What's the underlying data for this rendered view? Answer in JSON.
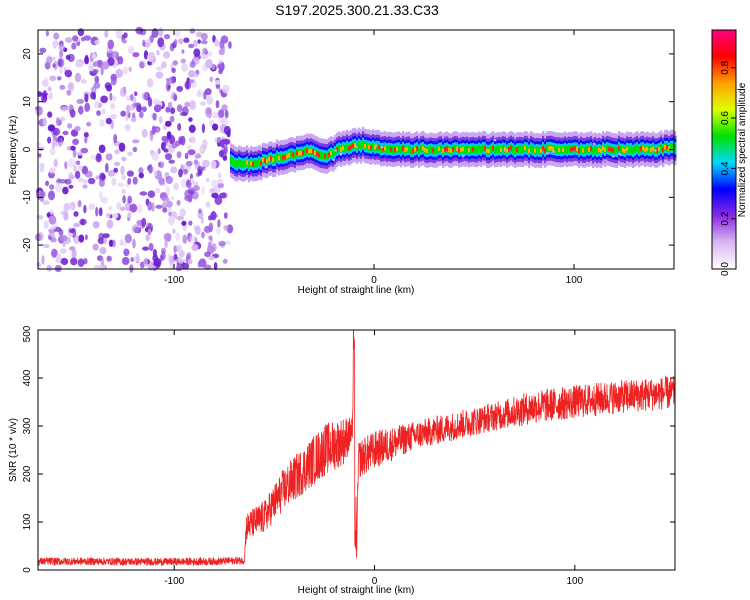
{
  "figure": {
    "title": "S197.2025.300.21.33.C33"
  },
  "chart_data": [
    {
      "type": "heatmap",
      "name": "spectrogram",
      "xlabel": "Height of straight line (km)",
      "ylabel": "Frequency (Hz)",
      "xlim": [
        -168,
        150
      ],
      "ylim": [
        -25,
        25
      ],
      "xticks": [
        -100,
        0,
        100
      ],
      "yticks": [
        -20,
        -10,
        0,
        10,
        20
      ],
      "noise_region_x": [
        -168,
        -72
      ],
      "ridge": {
        "x": [
          -72,
          -68,
          -60,
          -52,
          -45,
          -40,
          -35,
          -30,
          -26,
          -22,
          -18,
          -12,
          -6,
          0,
          10,
          20,
          40,
          60,
          80,
          100,
          120,
          140,
          150
        ],
        "freq": [
          -2.5,
          -3,
          -3,
          -2,
          -1.5,
          -1,
          -0.5,
          -0.5,
          -1.5,
          -1,
          0,
          0.5,
          1,
          0.5,
          0,
          0,
          0,
          0,
          0,
          0,
          0,
          0,
          0.5
        ]
      },
      "colorbar": {
        "label": "Normalized spectral amplitude",
        "range": [
          0,
          0.95
        ],
        "ticks": [
          "0.0",
          "0.2",
          "0.4",
          "0.6",
          "0.8"
        ],
        "tick_values": [
          0,
          0.2,
          0.4,
          0.6,
          0.8
        ],
        "colors": [
          "#ffffff",
          "#d9b8f2",
          "#8a2be2",
          "#0000ff",
          "#00d8ff",
          "#00e000",
          "#e0ff00",
          "#ffa000",
          "#ff0000",
          "#ff0080"
        ]
      }
    },
    {
      "type": "line",
      "name": "snr",
      "xlabel": "Height of straight line (km)",
      "ylabel": "SNR (10 * v/v)",
      "xlim": [
        -168,
        150
      ],
      "ylim": [
        0,
        500
      ],
      "xticks": [
        -100,
        0,
        100
      ],
      "yticks": [
        0,
        100,
        200,
        300,
        400,
        500
      ],
      "color": "#ee2222",
      "series": [
        {
          "name": "SNR",
          "x": [
            -168,
            -140,
            -110,
            -80,
            -65,
            -64,
            -55,
            -45,
            -35,
            -25,
            -15,
            -11,
            -10,
            -9,
            -8,
            0,
            20,
            40,
            60,
            80,
            100,
            120,
            150
          ],
          "mean": [
            18,
            18,
            17,
            18,
            20,
            90,
            110,
            170,
            210,
            250,
            270,
            290,
            480,
            30,
            230,
            250,
            280,
            300,
            320,
            340,
            350,
            360,
            370
          ],
          "spread": [
            8,
            8,
            8,
            8,
            8,
            30,
            35,
            45,
            50,
            55,
            50,
            30,
            20,
            20,
            40,
            40,
            30,
            30,
            30,
            35,
            35,
            35,
            35
          ]
        }
      ]
    }
  ]
}
